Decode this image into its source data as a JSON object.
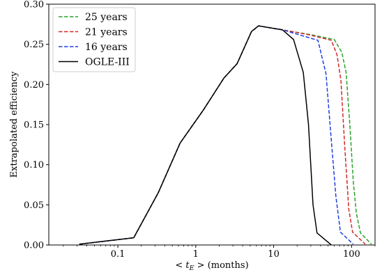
{
  "chart_data": {
    "type": "line",
    "xlabel": "< t_E > (months)",
    "ylabel": "Extrapolated efficiency",
    "x_scale": "log",
    "xlim": [
      0.013,
      200
    ],
    "ylim": [
      0.0,
      0.3
    ],
    "x_ticks": [
      {
        "value": 0.1,
        "label": "0.1"
      },
      {
        "value": 1,
        "label": "1"
      },
      {
        "value": 10,
        "label": "10"
      },
      {
        "value": 100,
        "label": "100"
      }
    ],
    "y_ticks": [
      {
        "value": 0.0,
        "label": "0.00"
      },
      {
        "value": 0.05,
        "label": "0.05"
      },
      {
        "value": 0.1,
        "label": "0.10"
      },
      {
        "value": 0.15,
        "label": "0.15"
      },
      {
        "value": 0.2,
        "label": "0.20"
      },
      {
        "value": 0.25,
        "label": "0.25"
      },
      {
        "value": 0.3,
        "label": "0.30"
      }
    ],
    "legend_position": "top-left",
    "grid": false,
    "series": [
      {
        "name": "25 years",
        "color": "#2ca02c",
        "style": "dashed",
        "points": [
          [
            0.032,
            0.001
          ],
          [
            0.16,
            0.009
          ],
          [
            0.33,
            0.065
          ],
          [
            0.63,
            0.127
          ],
          [
            1.25,
            0.168
          ],
          [
            2.3,
            0.208
          ],
          [
            3.4,
            0.226
          ],
          [
            5.2,
            0.266
          ],
          [
            6.4,
            0.273
          ],
          [
            13,
            0.268
          ],
          [
            30,
            0.262
          ],
          [
            60,
            0.256
          ],
          [
            75,
            0.24
          ],
          [
            85,
            0.215
          ],
          [
            95,
            0.15
          ],
          [
            105,
            0.08
          ],
          [
            115,
            0.04
          ],
          [
            130,
            0.015
          ],
          [
            180,
            0.001
          ]
        ]
      },
      {
        "name": "21 years",
        "color": "#d62728",
        "style": "dashed",
        "points": [
          [
            0.032,
            0.001
          ],
          [
            0.16,
            0.009
          ],
          [
            0.33,
            0.065
          ],
          [
            0.63,
            0.127
          ],
          [
            1.25,
            0.168
          ],
          [
            2.3,
            0.208
          ],
          [
            3.4,
            0.226
          ],
          [
            5.2,
            0.266
          ],
          [
            6.4,
            0.273
          ],
          [
            13,
            0.268
          ],
          [
            28,
            0.262
          ],
          [
            55,
            0.255
          ],
          [
            65,
            0.237
          ],
          [
            73,
            0.205
          ],
          [
            82,
            0.12
          ],
          [
            92,
            0.045
          ],
          [
            103,
            0.016
          ],
          [
            150,
            0.001
          ]
        ]
      },
      {
        "name": "16 years",
        "color": "#1f3fe0",
        "style": "dashed",
        "points": [
          [
            0.032,
            0.001
          ],
          [
            0.16,
            0.009
          ],
          [
            0.33,
            0.065
          ],
          [
            0.63,
            0.127
          ],
          [
            1.25,
            0.168
          ],
          [
            2.3,
            0.208
          ],
          [
            3.4,
            0.226
          ],
          [
            5.2,
            0.266
          ],
          [
            6.4,
            0.273
          ],
          [
            13,
            0.268
          ],
          [
            37,
            0.255
          ],
          [
            47,
            0.213
          ],
          [
            55,
            0.13
          ],
          [
            63,
            0.06
          ],
          [
            72,
            0.016
          ],
          [
            105,
            0.001
          ]
        ]
      },
      {
        "name": "OGLE-III",
        "color": "#000000",
        "style": "solid",
        "points": [
          [
            0.032,
            0.001
          ],
          [
            0.16,
            0.009
          ],
          [
            0.33,
            0.065
          ],
          [
            0.63,
            0.127
          ],
          [
            1.25,
            0.168
          ],
          [
            2.3,
            0.208
          ],
          [
            3.4,
            0.226
          ],
          [
            5.2,
            0.266
          ],
          [
            6.4,
            0.273
          ],
          [
            13,
            0.268
          ],
          [
            18,
            0.256
          ],
          [
            24,
            0.215
          ],
          [
            28,
            0.15
          ],
          [
            32,
            0.05
          ],
          [
            36,
            0.015
          ],
          [
            55,
            0.0
          ]
        ]
      }
    ]
  }
}
